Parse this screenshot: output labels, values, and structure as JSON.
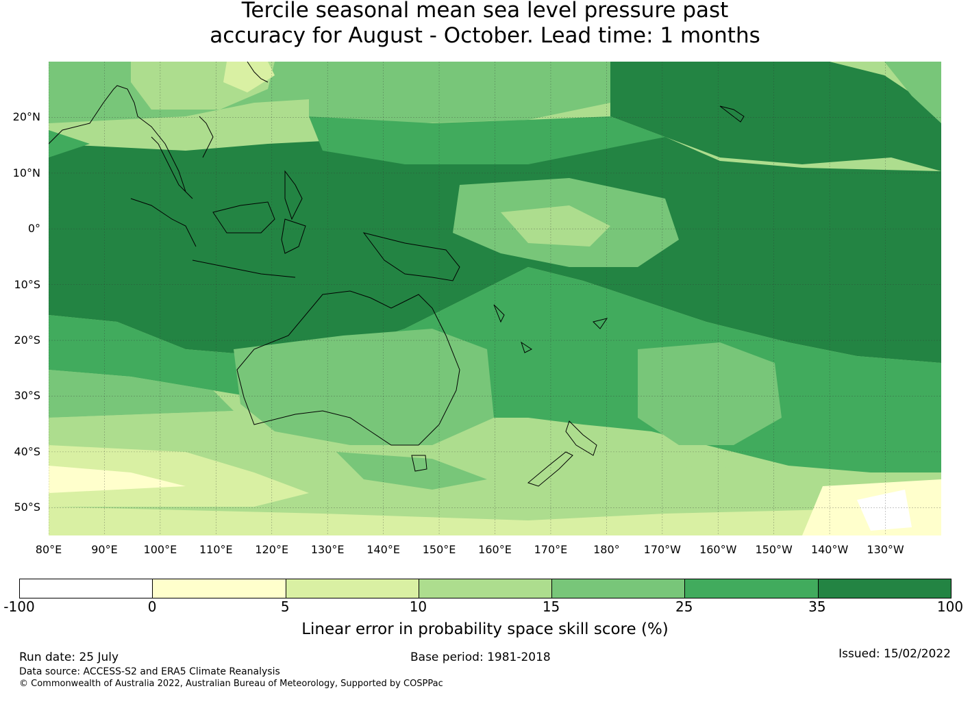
{
  "title": {
    "line1": "Tercile seasonal mean sea level pressure past",
    "line2": "accuracy for August - October. Lead time: 1 months"
  },
  "map": {
    "lon_range": [
      80,
      240
    ],
    "lat_range": [
      -55,
      30
    ],
    "gridlines": true,
    "lat_labels": [
      "20°N",
      "10°N",
      "0°",
      "10°S",
      "20°S",
      "30°S",
      "40°S",
      "50°S"
    ],
    "lat_values": [
      20,
      10,
      0,
      -10,
      -20,
      -30,
      -40,
      -50
    ],
    "lon_labels": [
      "80°E",
      "90°E",
      "100°E",
      "110°E",
      "120°E",
      "130°E",
      "140°E",
      "150°E",
      "160°E",
      "170°E",
      "180°",
      "170°W",
      "160°W",
      "150°W",
      "140°W",
      "130°W"
    ],
    "lon_values": [
      80,
      90,
      100,
      110,
      120,
      130,
      140,
      150,
      160,
      170,
      180,
      190,
      200,
      210,
      220,
      230
    ]
  },
  "colorbar": {
    "ticks": [
      "-100",
      "0",
      "5",
      "10",
      "15",
      "25",
      "35",
      "100"
    ],
    "colors": [
      "#ffffff",
      "#ffffcc",
      "#d9f0a3",
      "#addd8e",
      "#78c679",
      "#41ab5d",
      "#238443"
    ],
    "label": "Linear error in probability space skill score (%)"
  },
  "footer": {
    "run_date": "Run date: 25 July",
    "base_period": "Base period: 1981-2018",
    "issued": "Issued: 15/02/2022",
    "data_source": "Data source: ACCESS-S2 and ERA5 Climate Reanalysis",
    "copyright": "© Commonwealth of Australia 2022, Australian Bureau of Meteorology, Supported by COSPPac"
  }
}
